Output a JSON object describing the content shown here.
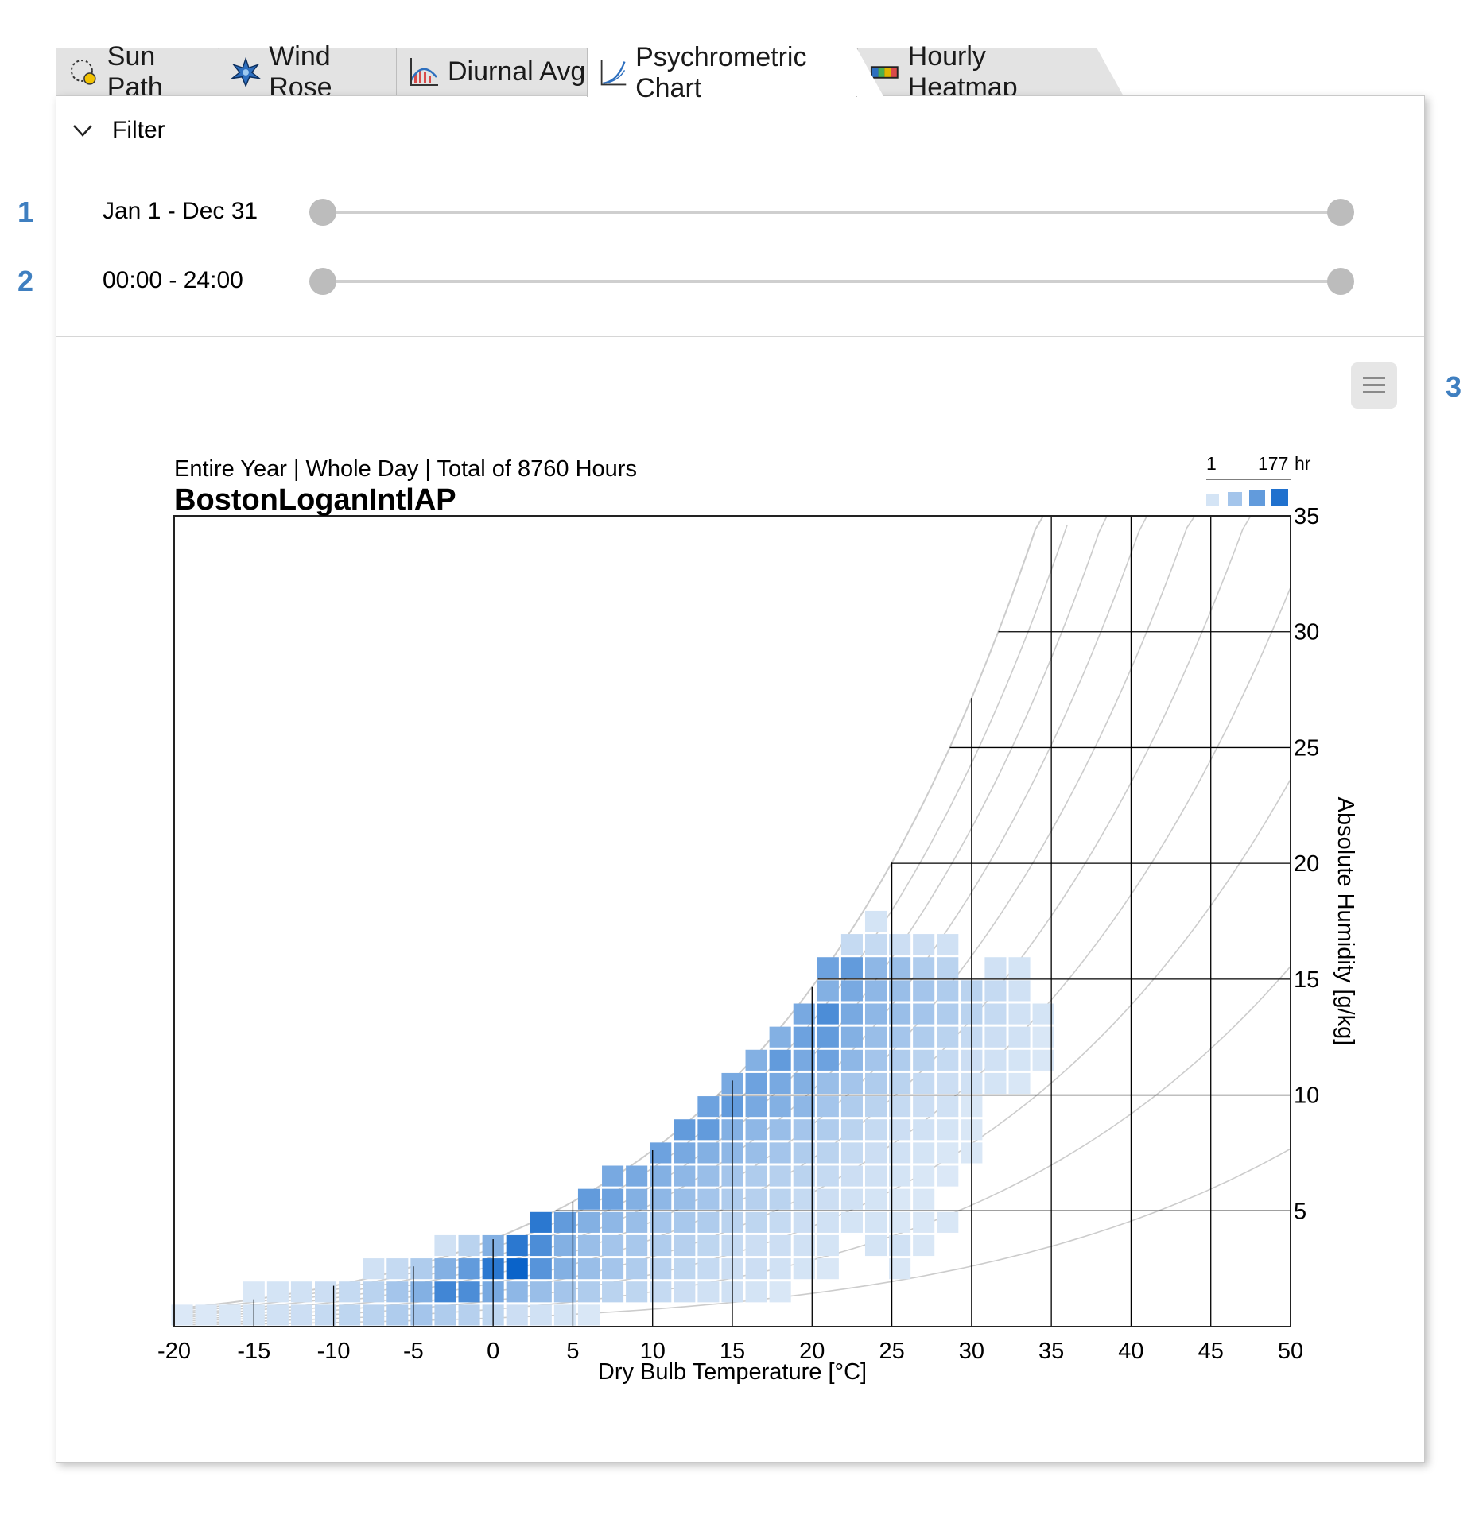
{
  "tabs": [
    {
      "label": "Sun Path",
      "icon": "sun-path-icon",
      "active": false
    },
    {
      "label": "Wind Rose",
      "icon": "wind-rose-icon",
      "active": false
    },
    {
      "label": "Diurnal Avg",
      "icon": "diurnal-avg-icon",
      "active": false
    },
    {
      "label": "Psychrometric Chart",
      "icon": "psychrometric-icon",
      "active": true
    },
    {
      "label": "Hourly Heatmap",
      "icon": "heatmap-icon",
      "active": false
    }
  ],
  "filter": {
    "label": "Filter",
    "date_range": "Jan 1 - Dec 31",
    "date_range_fraction": [
      0,
      1
    ],
    "time_range": "00:00 - 24:00",
    "time_range_fraction": [
      0,
      1
    ]
  },
  "callouts": [
    "1",
    "2",
    "3"
  ],
  "menu_icon": "hamburger-menu-icon",
  "chart_data": {
    "type": "heatmap",
    "subtitle": "Entire Year | Whole Day | Total of 8760 Hours",
    "title": "BostonLoganIntlAP",
    "xlabel": "Dry Bulb Temperature [°C]",
    "ylabel": "Absolute Humidity [g/kg]",
    "xlim": [
      -20,
      50
    ],
    "ylim": [
      0,
      35
    ],
    "xticks": [
      "-20",
      "-15",
      "-10",
      "-5",
      "0",
      "5",
      "10",
      "15",
      "20",
      "25",
      "30",
      "35",
      "40",
      "45",
      "50"
    ],
    "yticks": [
      "5",
      "10",
      "15",
      "20",
      "25",
      "30",
      "35"
    ],
    "legend": {
      "min_label": "1",
      "max_label": "177",
      "unit": "hr",
      "position": "top-right"
    },
    "colors": {
      "low": "#e6eff9",
      "high": "#0a63c9",
      "grid": "#000000",
      "rh_curves": "#cccccc"
    },
    "bin_size": {
      "temp": 1.5,
      "humidity": 1.0
    },
    "cells": [
      [
        -19.5,
        0.5,
        0.05
      ],
      [
        -18,
        0.5,
        0.05
      ],
      [
        -16.5,
        0.5,
        0.06
      ],
      [
        -15,
        0.5,
        0.08
      ],
      [
        -13.5,
        0.5,
        0.1
      ],
      [
        -12,
        0.5,
        0.12
      ],
      [
        -10.5,
        0.5,
        0.15
      ],
      [
        -9,
        0.5,
        0.18
      ],
      [
        -7.5,
        0.5,
        0.2
      ],
      [
        -6,
        0.5,
        0.25
      ],
      [
        -4.5,
        0.5,
        0.3
      ],
      [
        -3,
        0.5,
        0.25
      ],
      [
        -1.5,
        0.5,
        0.22
      ],
      [
        0,
        0.5,
        0.18
      ],
      [
        1.5,
        0.5,
        0.12
      ],
      [
        3,
        0.5,
        0.1
      ],
      [
        4.5,
        0.5,
        0.08
      ],
      [
        6,
        0.5,
        0.06
      ],
      [
        -15,
        1.5,
        0.06
      ],
      [
        -13.5,
        1.5,
        0.08
      ],
      [
        -12,
        1.5,
        0.1
      ],
      [
        -10.5,
        1.5,
        0.12
      ],
      [
        -9,
        1.5,
        0.15
      ],
      [
        -7.5,
        1.5,
        0.2
      ],
      [
        -6,
        1.5,
        0.3
      ],
      [
        -4.5,
        1.5,
        0.45
      ],
      [
        -3,
        1.5,
        0.75
      ],
      [
        -1.5,
        1.5,
        0.7
      ],
      [
        0,
        1.5,
        0.5
      ],
      [
        1.5,
        1.5,
        0.4
      ],
      [
        3,
        1.5,
        0.35
      ],
      [
        4.5,
        1.5,
        0.3
      ],
      [
        6,
        1.5,
        0.25
      ],
      [
        7.5,
        1.5,
        0.2
      ],
      [
        9,
        1.5,
        0.18
      ],
      [
        10.5,
        1.5,
        0.15
      ],
      [
        12,
        1.5,
        0.12
      ],
      [
        13.5,
        1.5,
        0.1
      ],
      [
        15,
        1.5,
        0.1
      ],
      [
        16.5,
        1.5,
        0.08
      ],
      [
        18,
        1.5,
        0.06
      ],
      [
        -7.5,
        2.5,
        0.1
      ],
      [
        -6,
        2.5,
        0.15
      ],
      [
        -4.5,
        2.5,
        0.25
      ],
      [
        -3,
        2.5,
        0.45
      ],
      [
        -1.5,
        2.5,
        0.6
      ],
      [
        0,
        2.5,
        0.85
      ],
      [
        1.5,
        2.5,
        1.0
      ],
      [
        3,
        2.5,
        0.65
      ],
      [
        4.5,
        2.5,
        0.45
      ],
      [
        6,
        2.5,
        0.35
      ],
      [
        7.5,
        2.5,
        0.3
      ],
      [
        9,
        2.5,
        0.25
      ],
      [
        10.5,
        2.5,
        0.22
      ],
      [
        12,
        2.5,
        0.18
      ],
      [
        13.5,
        2.5,
        0.15
      ],
      [
        15,
        2.5,
        0.12
      ],
      [
        16.5,
        2.5,
        0.12
      ],
      [
        18,
        2.5,
        0.1
      ],
      [
        19.5,
        2.5,
        0.08
      ],
      [
        21,
        2.5,
        0.06
      ],
      [
        25.5,
        2.5,
        0.06
      ],
      [
        -3,
        3.5,
        0.1
      ],
      [
        -1.5,
        3.5,
        0.2
      ],
      [
        0,
        3.5,
        0.45
      ],
      [
        1.5,
        3.5,
        0.85
      ],
      [
        3,
        3.5,
        0.7
      ],
      [
        4.5,
        3.5,
        0.45
      ],
      [
        6,
        3.5,
        0.35
      ],
      [
        7.5,
        3.5,
        0.3
      ],
      [
        9,
        3.5,
        0.28
      ],
      [
        10.5,
        3.5,
        0.25
      ],
      [
        12,
        3.5,
        0.22
      ],
      [
        13.5,
        3.5,
        0.18
      ],
      [
        15,
        3.5,
        0.15
      ],
      [
        16.5,
        3.5,
        0.12
      ],
      [
        18,
        3.5,
        0.12
      ],
      [
        19.5,
        3.5,
        0.1
      ],
      [
        21,
        3.5,
        0.08
      ],
      [
        24,
        3.5,
        0.08
      ],
      [
        25.5,
        3.5,
        0.1
      ],
      [
        27,
        3.5,
        0.06
      ],
      [
        3,
        4.5,
        0.85
      ],
      [
        4.5,
        4.5,
        0.6
      ],
      [
        6,
        4.5,
        0.45
      ],
      [
        7.5,
        4.5,
        0.4
      ],
      [
        9,
        4.5,
        0.35
      ],
      [
        10.5,
        4.5,
        0.3
      ],
      [
        12,
        4.5,
        0.28
      ],
      [
        13.5,
        4.5,
        0.25
      ],
      [
        15,
        4.5,
        0.2
      ],
      [
        16.5,
        4.5,
        0.18
      ],
      [
        18,
        4.5,
        0.15
      ],
      [
        19.5,
        4.5,
        0.12
      ],
      [
        21,
        4.5,
        0.1
      ],
      [
        22.5,
        4.5,
        0.08
      ],
      [
        24,
        4.5,
        0.08
      ],
      [
        25.5,
        4.5,
        0.06
      ],
      [
        27,
        4.5,
        0.06
      ],
      [
        28.5,
        4.5,
        0.06
      ],
      [
        6,
        5.5,
        0.6
      ],
      [
        7.5,
        5.5,
        0.55
      ],
      [
        9,
        5.5,
        0.45
      ],
      [
        10.5,
        5.5,
        0.4
      ],
      [
        12,
        5.5,
        0.35
      ],
      [
        13.5,
        5.5,
        0.3
      ],
      [
        15,
        5.5,
        0.25
      ],
      [
        16.5,
        5.5,
        0.22
      ],
      [
        18,
        5.5,
        0.2
      ],
      [
        19.5,
        5.5,
        0.15
      ],
      [
        21,
        5.5,
        0.12
      ],
      [
        22.5,
        5.5,
        0.1
      ],
      [
        24,
        5.5,
        0.08
      ],
      [
        25.5,
        5.5,
        0.06
      ],
      [
        27,
        5.5,
        0.06
      ],
      [
        7.5,
        6.5,
        0.5
      ],
      [
        9,
        6.5,
        0.5
      ],
      [
        10.5,
        6.5,
        0.45
      ],
      [
        12,
        6.5,
        0.4
      ],
      [
        13.5,
        6.5,
        0.35
      ],
      [
        15,
        6.5,
        0.3
      ],
      [
        16.5,
        6.5,
        0.25
      ],
      [
        18,
        6.5,
        0.22
      ],
      [
        19.5,
        6.5,
        0.2
      ],
      [
        21,
        6.5,
        0.15
      ],
      [
        22.5,
        6.5,
        0.12
      ],
      [
        24,
        6.5,
        0.1
      ],
      [
        25.5,
        6.5,
        0.08
      ],
      [
        27,
        6.5,
        0.06
      ],
      [
        28.5,
        6.5,
        0.05
      ],
      [
        10.5,
        7.5,
        0.55
      ],
      [
        12,
        7.5,
        0.5
      ],
      [
        13.5,
        7.5,
        0.45
      ],
      [
        15,
        7.5,
        0.4
      ],
      [
        16.5,
        7.5,
        0.35
      ],
      [
        18,
        7.5,
        0.3
      ],
      [
        19.5,
        7.5,
        0.25
      ],
      [
        21,
        7.5,
        0.2
      ],
      [
        22.5,
        7.5,
        0.15
      ],
      [
        24,
        7.5,
        0.12
      ],
      [
        25.5,
        7.5,
        0.1
      ],
      [
        27,
        7.5,
        0.08
      ],
      [
        28.5,
        7.5,
        0.06
      ],
      [
        30,
        7.5,
        0.06
      ],
      [
        12,
        8.5,
        0.6
      ],
      [
        13.5,
        8.5,
        0.6
      ],
      [
        15,
        8.5,
        0.45
      ],
      [
        16.5,
        8.5,
        0.4
      ],
      [
        18,
        8.5,
        0.35
      ],
      [
        19.5,
        8.5,
        0.3
      ],
      [
        21,
        8.5,
        0.25
      ],
      [
        22.5,
        8.5,
        0.2
      ],
      [
        24,
        8.5,
        0.15
      ],
      [
        25.5,
        8.5,
        0.12
      ],
      [
        27,
        8.5,
        0.1
      ],
      [
        28.5,
        8.5,
        0.08
      ],
      [
        30,
        8.5,
        0.06
      ],
      [
        13.5,
        9.5,
        0.55
      ],
      [
        15,
        9.5,
        0.6
      ],
      [
        16.5,
        9.5,
        0.5
      ],
      [
        18,
        9.5,
        0.45
      ],
      [
        19.5,
        9.5,
        0.4
      ],
      [
        21,
        9.5,
        0.3
      ],
      [
        22.5,
        9.5,
        0.25
      ],
      [
        24,
        9.5,
        0.2
      ],
      [
        25.5,
        9.5,
        0.15
      ],
      [
        27,
        9.5,
        0.12
      ],
      [
        28.5,
        9.5,
        0.1
      ],
      [
        30,
        9.5,
        0.06
      ],
      [
        15,
        10.5,
        0.5
      ],
      [
        16.5,
        10.5,
        0.55
      ],
      [
        18,
        10.5,
        0.5
      ],
      [
        19.5,
        10.5,
        0.45
      ],
      [
        21,
        10.5,
        0.35
      ],
      [
        22.5,
        10.5,
        0.3
      ],
      [
        24,
        10.5,
        0.25
      ],
      [
        25.5,
        10.5,
        0.2
      ],
      [
        27,
        10.5,
        0.15
      ],
      [
        28.5,
        10.5,
        0.12
      ],
      [
        30,
        10.5,
        0.1
      ],
      [
        31.5,
        10.5,
        0.08
      ],
      [
        33,
        10.5,
        0.06
      ],
      [
        16.5,
        11.5,
        0.45
      ],
      [
        18,
        11.5,
        0.6
      ],
      [
        19.5,
        11.5,
        0.5
      ],
      [
        21,
        11.5,
        0.55
      ],
      [
        22.5,
        11.5,
        0.4
      ],
      [
        24,
        11.5,
        0.3
      ],
      [
        25.5,
        11.5,
        0.25
      ],
      [
        27,
        11.5,
        0.2
      ],
      [
        28.5,
        11.5,
        0.15
      ],
      [
        30,
        11.5,
        0.12
      ],
      [
        31.5,
        11.5,
        0.1
      ],
      [
        33,
        11.5,
        0.08
      ],
      [
        34.5,
        11.5,
        0.06
      ],
      [
        18,
        12.5,
        0.45
      ],
      [
        19.5,
        12.5,
        0.55
      ],
      [
        21,
        12.5,
        0.6
      ],
      [
        22.5,
        12.5,
        0.45
      ],
      [
        24,
        12.5,
        0.35
      ],
      [
        25.5,
        12.5,
        0.3
      ],
      [
        27,
        12.5,
        0.25
      ],
      [
        28.5,
        12.5,
        0.2
      ],
      [
        30,
        12.5,
        0.15
      ],
      [
        31.5,
        12.5,
        0.12
      ],
      [
        33,
        12.5,
        0.1
      ],
      [
        34.5,
        12.5,
        0.06
      ],
      [
        19.5,
        13.5,
        0.5
      ],
      [
        21,
        13.5,
        0.7
      ],
      [
        22.5,
        13.5,
        0.5
      ],
      [
        24,
        13.5,
        0.4
      ],
      [
        25.5,
        13.5,
        0.35
      ],
      [
        27,
        13.5,
        0.3
      ],
      [
        28.5,
        13.5,
        0.25
      ],
      [
        30,
        13.5,
        0.2
      ],
      [
        31.5,
        13.5,
        0.15
      ],
      [
        33,
        13.5,
        0.1
      ],
      [
        34.5,
        13.5,
        0.08
      ],
      [
        21,
        14.5,
        0.45
      ],
      [
        22.5,
        14.5,
        0.5
      ],
      [
        24,
        14.5,
        0.4
      ],
      [
        25.5,
        14.5,
        0.35
      ],
      [
        27,
        14.5,
        0.3
      ],
      [
        28.5,
        14.5,
        0.25
      ],
      [
        30,
        14.5,
        0.2
      ],
      [
        31.5,
        14.5,
        0.15
      ],
      [
        33,
        14.5,
        0.1
      ],
      [
        21,
        15.5,
        0.55
      ],
      [
        22.5,
        15.5,
        0.6
      ],
      [
        24,
        15.5,
        0.4
      ],
      [
        25.5,
        15.5,
        0.35
      ],
      [
        27,
        15.5,
        0.25
      ],
      [
        28.5,
        15.5,
        0.2
      ],
      [
        31.5,
        15.5,
        0.1
      ],
      [
        33,
        15.5,
        0.08
      ],
      [
        22.5,
        16.5,
        0.15
      ],
      [
        24,
        16.5,
        0.15
      ],
      [
        25.5,
        16.5,
        0.12
      ],
      [
        27,
        16.5,
        0.12
      ],
      [
        28.5,
        16.5,
        0.1
      ],
      [
        24,
        17.5,
        0.08
      ]
    ]
  }
}
